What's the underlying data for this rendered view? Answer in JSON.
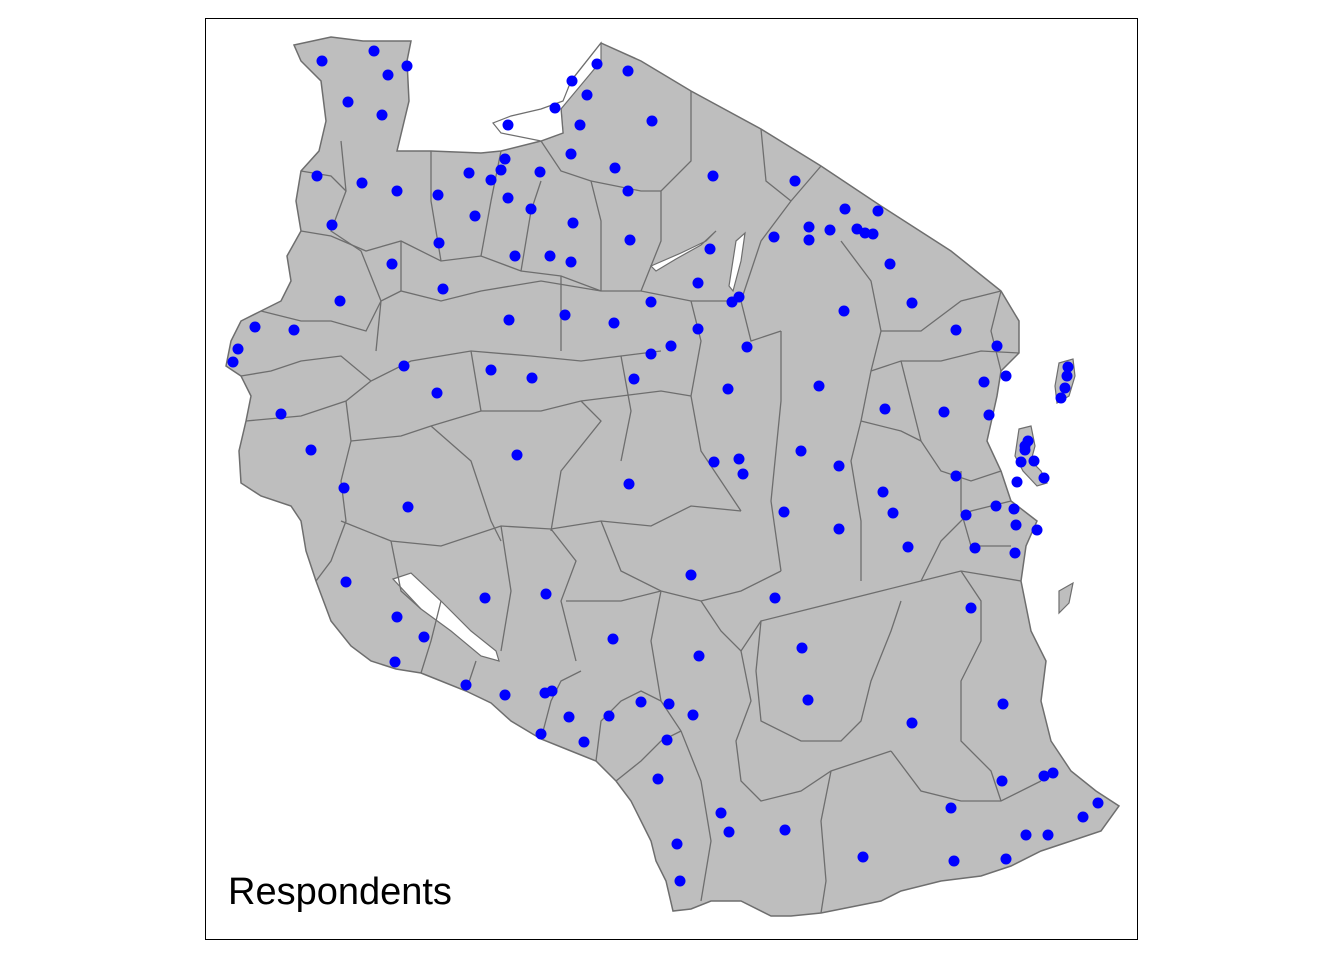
{
  "map": {
    "label": "Respondents",
    "region_fill": "#bebebe",
    "region_stroke": "#6e6e6e",
    "point_color": "#0000ff",
    "respondents_count": 164
  }
}
